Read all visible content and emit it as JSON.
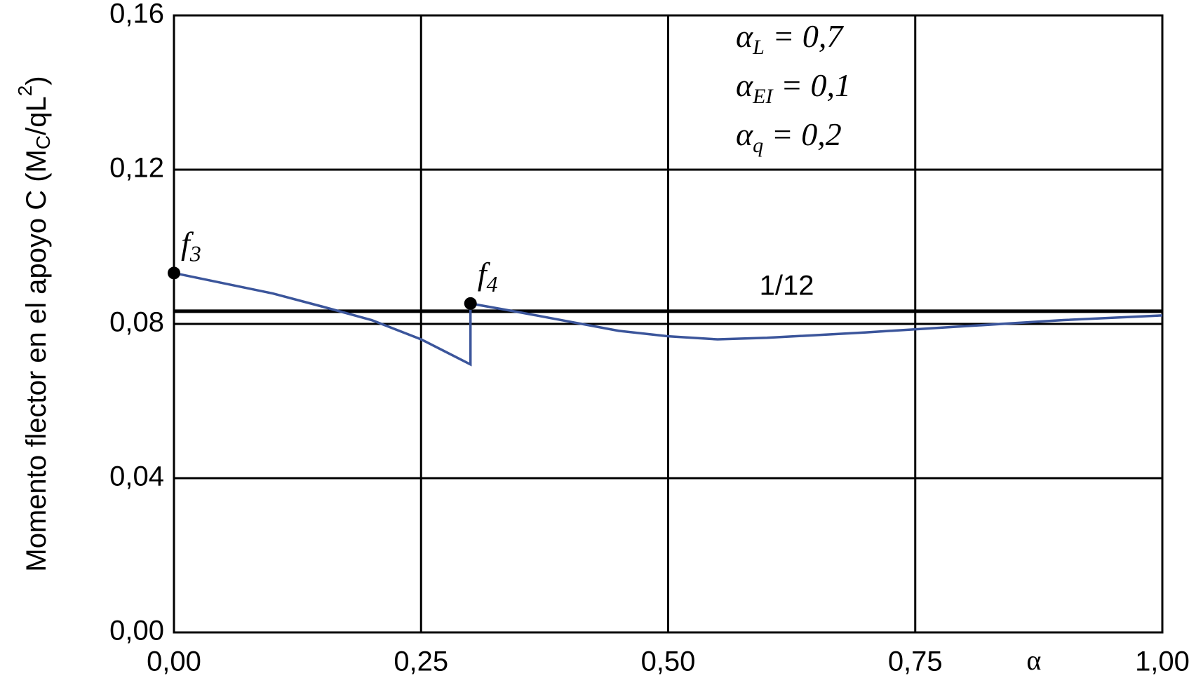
{
  "chart_data": {
    "type": "line",
    "ylabel": {
      "text": "Momento flector en el apoyo C (M",
      "sub": "C",
      "mid": "/qL",
      "sup": "2",
      "end": ")"
    },
    "xlabel": "α",
    "xlim": [
      0,
      1
    ],
    "ylim": [
      0,
      0.16
    ],
    "xticks": [
      {
        "value": 0,
        "label": "0,00"
      },
      {
        "value": 0.25,
        "label": "0,25"
      },
      {
        "value": 0.5,
        "label": "0,50"
      },
      {
        "value": 0.75,
        "label": "0,75"
      },
      {
        "value": 1,
        "label": "1,00"
      }
    ],
    "yticks": [
      {
        "value": 0,
        "label": "0,00"
      },
      {
        "value": 0.04,
        "label": "0,04"
      },
      {
        "value": 0.08,
        "label": "0,08"
      },
      {
        "value": 0.12,
        "label": "0,12"
      },
      {
        "value": 0.16,
        "label": "0,16"
      }
    ],
    "grid": true,
    "series": [
      {
        "color": "#3b559b",
        "x": [
          0,
          0.1,
          0.15,
          0.2,
          0.25,
          0.3,
          0.3,
          0.35,
          0.4,
          0.45,
          0.5,
          0.55,
          0.6,
          0.7,
          0.8,
          0.9,
          1.0
        ],
        "values": [
          0.0932,
          0.0879,
          0.0845,
          0.081,
          0.076,
          0.0695,
          0.0853,
          0.083,
          0.0806,
          0.0782,
          0.0768,
          0.076,
          0.0764,
          0.0778,
          0.0794,
          0.081,
          0.0822
        ]
      }
    ],
    "reference_line": {
      "value": 0.0833,
      "label": "1/12"
    },
    "points": [
      {
        "label": "f",
        "sub": "3",
        "x": 0,
        "y": 0.0932
      },
      {
        "label": "f",
        "sub": "4",
        "x": 0.3,
        "y": 0.0853
      }
    ],
    "annotations": [
      {
        "symbol": "α",
        "sub": "L",
        "text": " = 0,7"
      },
      {
        "symbol": "α",
        "sub": "EI",
        "text": " = 0,1"
      },
      {
        "symbol": "α",
        "sub": "q",
        "text": " = 0,2"
      }
    ]
  }
}
